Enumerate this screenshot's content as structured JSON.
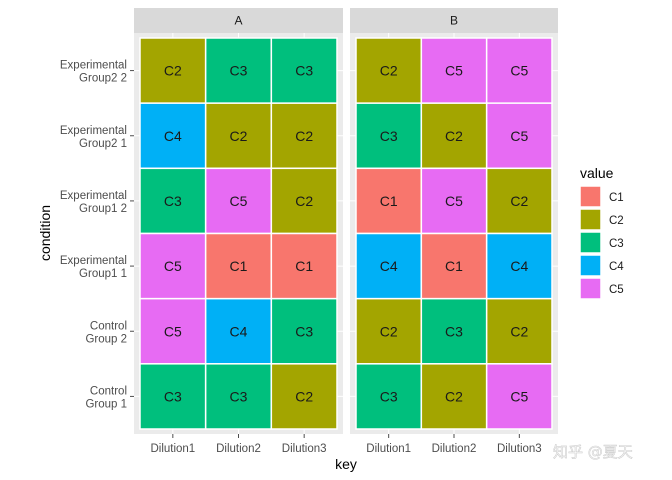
{
  "chart_data": {
    "type": "heatmap",
    "xlabel": "key",
    "ylabel": "condition",
    "x_categories": [
      "Dilution1",
      "Dilution2",
      "Dilution3"
    ],
    "y_categories": [
      [
        "Experimental",
        "Group2 2"
      ],
      [
        "Experimental",
        "Group2 1"
      ],
      [
        "Experimental",
        "Group1 2"
      ],
      [
        "Experimental",
        "Group1 1"
      ],
      [
        "Control",
        "Group 2"
      ],
      [
        "Control",
        "Group 1"
      ]
    ],
    "facets": [
      {
        "name": "A",
        "values": [
          [
            "C2",
            "C3",
            "C3"
          ],
          [
            "C4",
            "C2",
            "C2"
          ],
          [
            "C3",
            "C5",
            "C2"
          ],
          [
            "C5",
            "C1",
            "C1"
          ],
          [
            "C5",
            "C4",
            "C3"
          ],
          [
            "C3",
            "C3",
            "C2"
          ]
        ]
      },
      {
        "name": "B",
        "values": [
          [
            "C2",
            "C5",
            "C5"
          ],
          [
            "C3",
            "C2",
            "C5"
          ],
          [
            "C1",
            "C5",
            "C2"
          ],
          [
            "C4",
            "C1",
            "C4"
          ],
          [
            "C2",
            "C3",
            "C2"
          ],
          [
            "C3",
            "C2",
            "C5"
          ]
        ]
      }
    ],
    "legend": {
      "title": "value",
      "position": "right",
      "entries": [
        {
          "label": "C1",
          "color": "#F8766D"
        },
        {
          "label": "C2",
          "color": "#A3A500"
        },
        {
          "label": "C3",
          "color": "#00BF7D"
        },
        {
          "label": "C4",
          "color": "#00B0F6"
        },
        {
          "label": "C5",
          "color": "#E76BF3"
        }
      ]
    },
    "panel_background": "#ebebeb",
    "strip_background": "#d9d9d9",
    "grid": true
  },
  "watermark": "知乎 @夏天"
}
